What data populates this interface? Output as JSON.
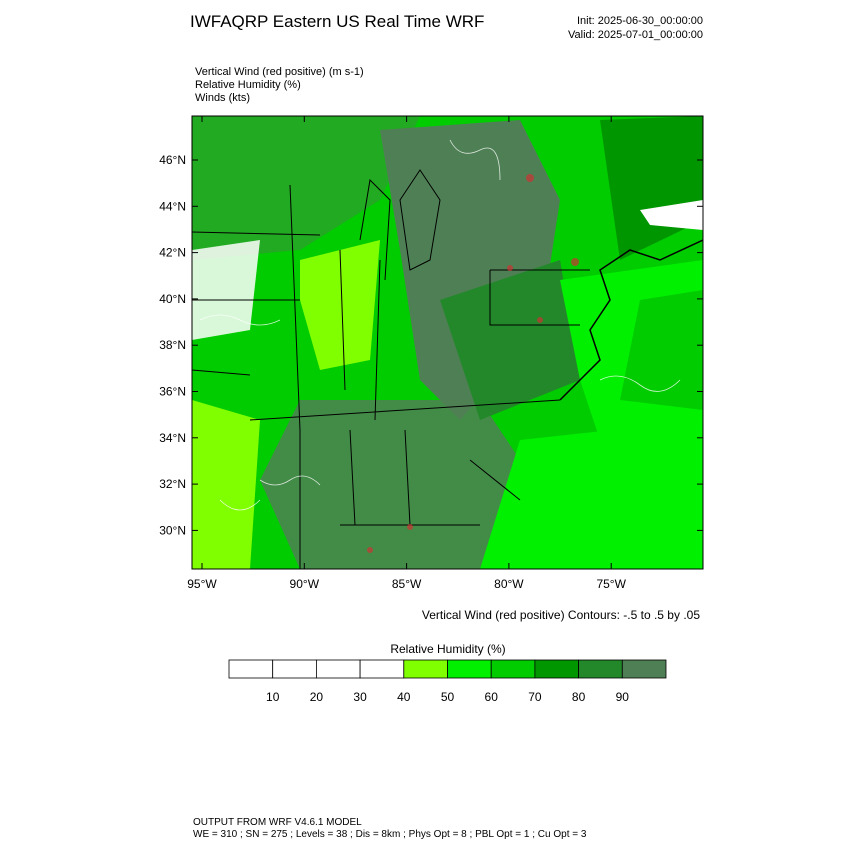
{
  "header": {
    "title": "IWFAQRP Eastern US Real Time WRF",
    "init": "Init: 2025-06-30_00:00:00",
    "valid": "Valid: 2025-07-01_00:00:00"
  },
  "fields": [
    "Vertical Wind (red positive)   (m s-1)",
    "Relative Humidity   (%)",
    "Winds   (kts)"
  ],
  "map": {
    "lat_labels": [
      "46°N",
      "44°N",
      "42°N",
      "40°N",
      "38°N",
      "36°N",
      "34°N",
      "32°N",
      "30°N"
    ],
    "lon_labels": [
      "95°W",
      "90°W",
      "85°W",
      "80°W",
      "75°W"
    ],
    "contour_note": "Vertical Wind (red positive) Contours: -.5 to .5 by .05"
  },
  "colorbar": {
    "title": "Relative Humidity   (%)",
    "levels": [
      10,
      20,
      30,
      40,
      50,
      60,
      70,
      80,
      90
    ],
    "colors": [
      "#ffffff",
      "#ffffff",
      "#ffffff",
      "#ffffff",
      "#80ff00",
      "#00f000",
      "#00cc00",
      "#009600",
      "#22882a",
      "#4f8055"
    ]
  },
  "footer": {
    "line1": "OUTPUT FROM WRF V4.6.1 MODEL",
    "line2": "WE = 310 ; SN = 275 ; Levels = 38 ; Dis = 8km ; Phys Opt = 8 ; PBL Opt = 1 ; Cu Opt = 3"
  }
}
